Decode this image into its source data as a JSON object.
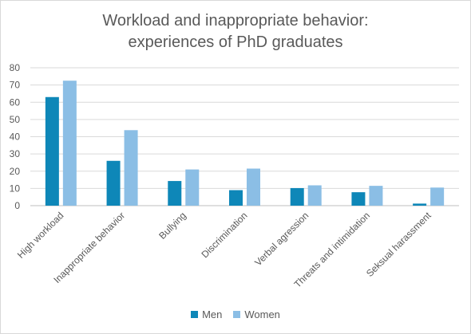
{
  "chart_data": {
    "type": "bar",
    "title_lines": [
      "Workload and inappropriate behavior:",
      "experiences of PhD graduates"
    ],
    "categories": [
      "High workload",
      "Inappropriate behavior",
      "Bullying",
      "Discrimination",
      "Verbal agression",
      "Threats and intimidation",
      "Seksual harassment"
    ],
    "series": [
      {
        "name": "Men",
        "color": "#0e87b8",
        "values": [
          63,
          26,
          14.3,
          9,
          10.2,
          7.8,
          1.2
        ]
      },
      {
        "name": "Women",
        "color": "#8bbee5",
        "values": [
          72.5,
          43.8,
          21,
          21.5,
          11.8,
          11.5,
          10.5
        ]
      }
    ],
    "xlabel": "",
    "ylabel": "",
    "ylim": [
      0,
      80
    ],
    "yticks": [
      "0",
      "10",
      "20",
      "30",
      "40",
      "50",
      "60",
      "70",
      "80"
    ],
    "grid": true,
    "legend_position": "bottom"
  }
}
